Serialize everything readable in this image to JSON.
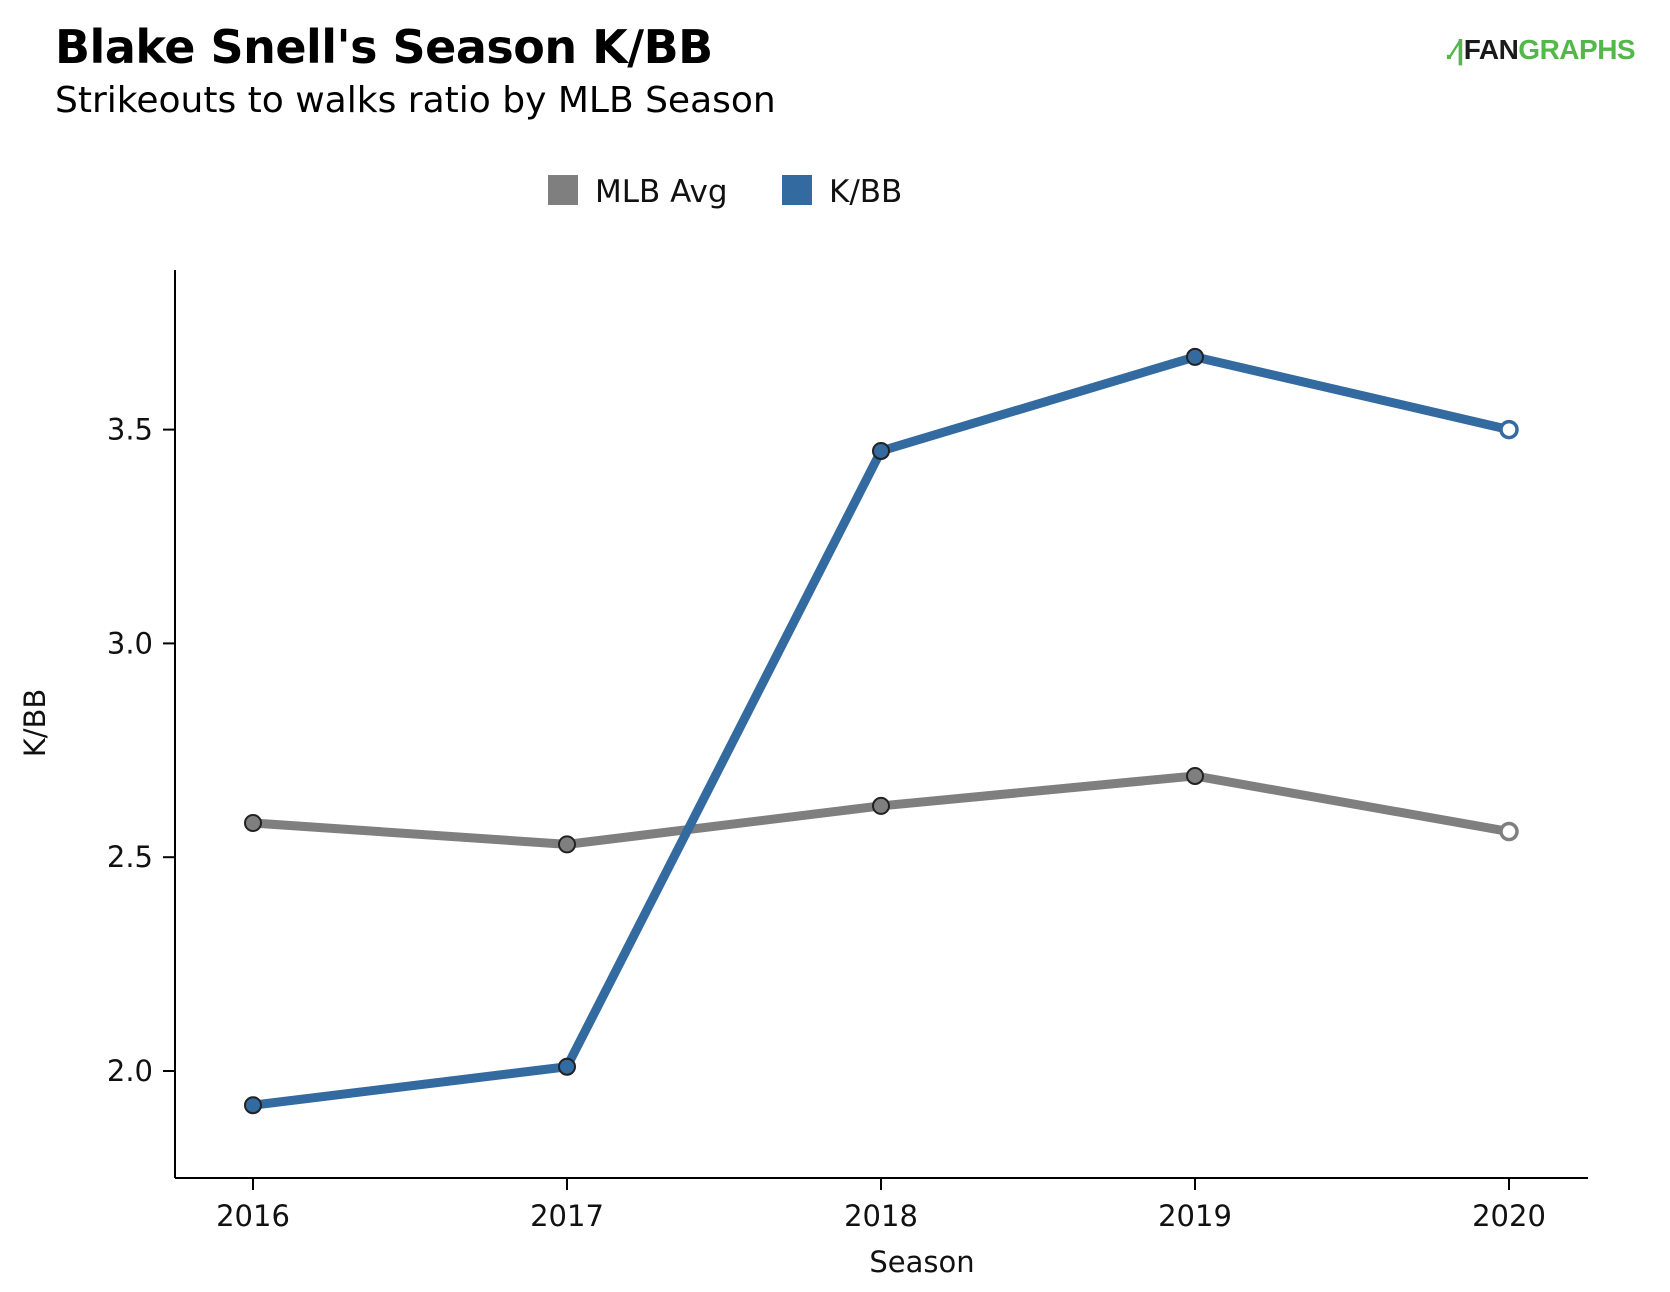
{
  "header": {
    "title": "Blake Snell's Season K/BB",
    "subtitle": "Strikeouts to walks ratio by MLB Season",
    "logo_text_a": "FAN",
    "logo_text_b": "GRAPHS"
  },
  "colors": {
    "mlb_avg": "#7f7f7f",
    "kbb": "#336aa0",
    "logo_green": "#52b848"
  },
  "chart_data": {
    "type": "line",
    "title": "Blake Snell's Season K/BB",
    "subtitle": "Strikeouts to walks ratio by MLB Season",
    "xlabel": "Season",
    "ylabel": "K/BB",
    "categories": [
      "2016",
      "2017",
      "2018",
      "2019",
      "2020"
    ],
    "ylim": [
      1.75,
      3.85
    ],
    "yticks": [
      2.0,
      2.5,
      3.0,
      3.5
    ],
    "ytick_labels": [
      "2.0",
      "2.5",
      "3.0",
      "3.5"
    ],
    "legend_placement": "top-center",
    "grid": false,
    "series": [
      {
        "name": "MLB Avg",
        "color": "#7f7f7f",
        "values": [
          2.58,
          2.53,
          2.62,
          2.69,
          2.56
        ],
        "last_point_hollow": true
      },
      {
        "name": "K/BB",
        "color": "#336aa0",
        "values": [
          1.92,
          2.01,
          3.45,
          3.67,
          3.5
        ],
        "last_point_hollow": true
      }
    ]
  }
}
